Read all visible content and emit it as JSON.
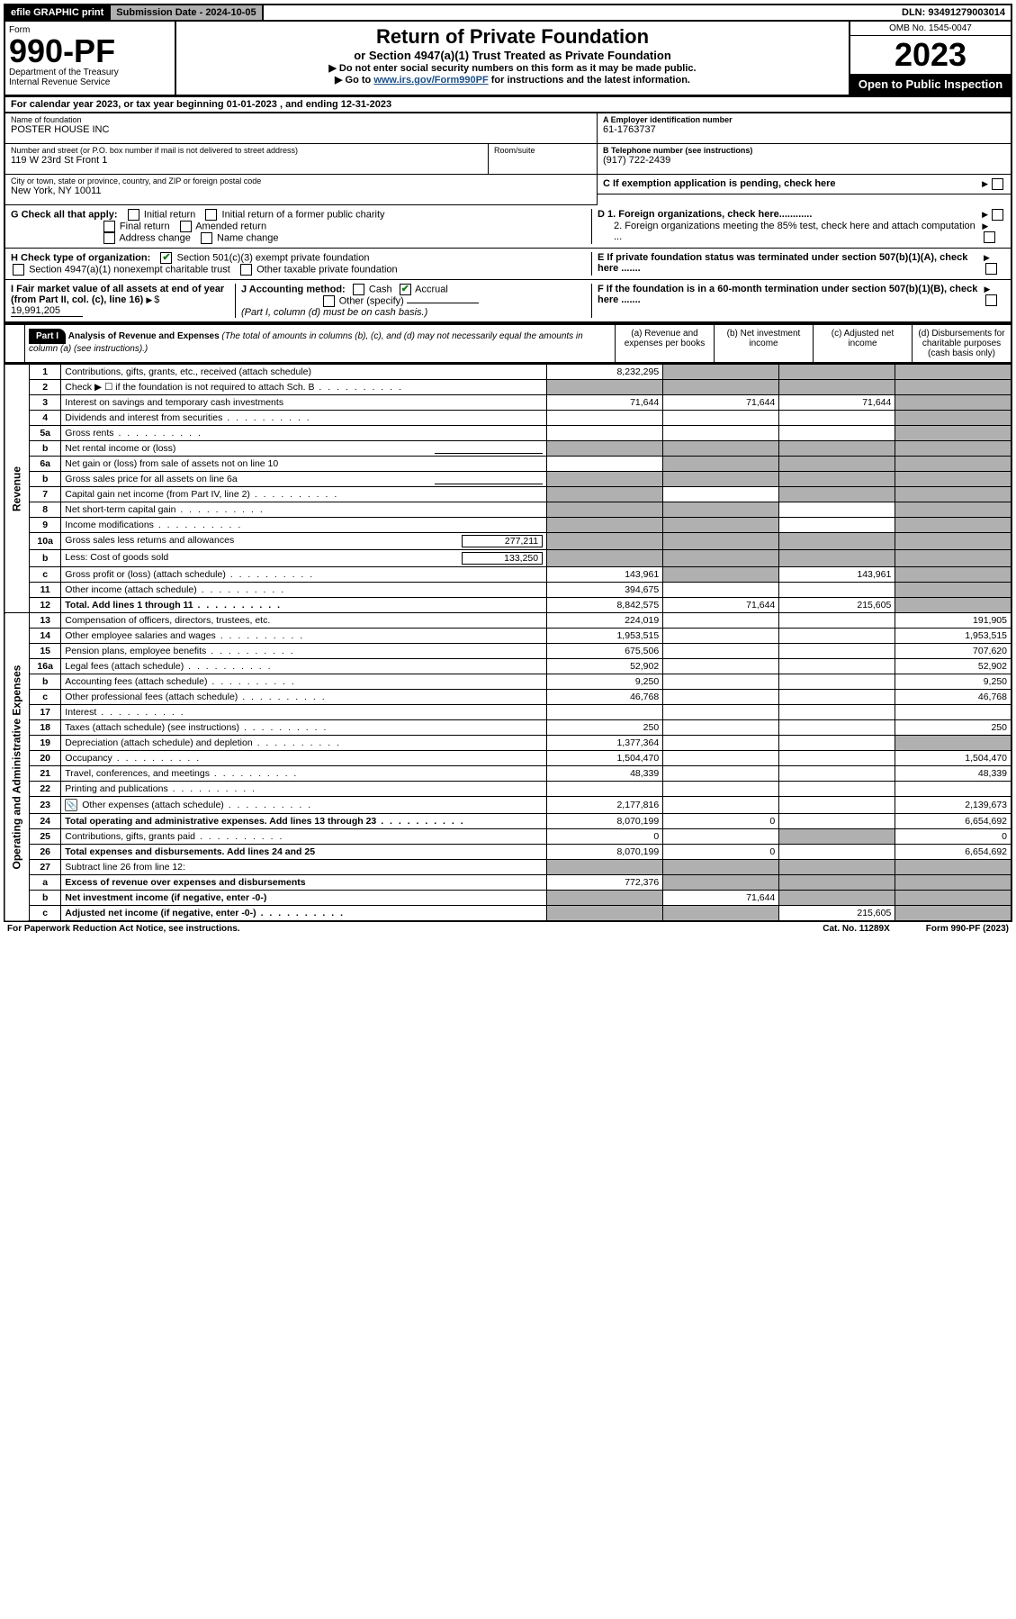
{
  "topbar": {
    "efile": "efile GRAPHIC print",
    "submission": "Submission Date - 2024-10-05",
    "dln": "DLN: 93491279003014"
  },
  "header": {
    "form_word": "Form",
    "form_number": "990-PF",
    "dept": "Department of the Treasury",
    "irs": "Internal Revenue Service",
    "title": "Return of Private Foundation",
    "subtitle": "or Section 4947(a)(1) Trust Treated as Private Foundation",
    "note1": "▶ Do not enter social security numbers on this form as it may be made public.",
    "note2_pre": "▶ Go to ",
    "note2_link": "www.irs.gov/Form990PF",
    "note2_post": " for instructions and the latest information.",
    "omb": "OMB No. 1545-0047",
    "year": "2023",
    "open": "Open to Public Inspection"
  },
  "calendar": "For calendar year 2023, or tax year beginning 01-01-2023                          , and ending 12-31-2023",
  "name": {
    "lbl": "Name of foundation",
    "val": "POSTER HOUSE INC"
  },
  "addr": {
    "lbl": "Number and street (or P.O. box number if mail is not delivered to street address)",
    "val": "119 W 23rd St Front 1",
    "room_lbl": "Room/suite"
  },
  "city": {
    "lbl": "City or town, state or province, country, and ZIP or foreign postal code",
    "val": "New York, NY  10011"
  },
  "ein": {
    "lbl": "A Employer identification number",
    "val": "61-1763737"
  },
  "tel": {
    "lbl": "B Telephone number (see instructions)",
    "val": "(917) 722-2439"
  },
  "c_exempt": "C If exemption application is pending, check here",
  "d1": "D 1. Foreign organizations, check here............",
  "d2": "2. Foreign organizations meeting the 85% test, check here and attach computation ...",
  "e": "E  If private foundation status was terminated under section 507(b)(1)(A), check here .......",
  "f": "F  If the foundation is in a 60-month termination under section 507(b)(1)(B), check here .......",
  "g": {
    "lbl": "G Check all that apply:",
    "opts": [
      "Initial return",
      "Initial return of a former public charity",
      "Final return",
      "Amended return",
      "Address change",
      "Name change"
    ]
  },
  "h": {
    "lbl": "H Check type of organization:",
    "o1": "Section 501(c)(3) exempt private foundation",
    "o2": "Section 4947(a)(1) nonexempt charitable trust",
    "o3": "Other taxable private foundation"
  },
  "i": {
    "lbl": "I Fair market value of all assets at end of year (from Part II, col. (c), line 16)",
    "val": "19,991,205"
  },
  "j": {
    "lbl": "J Accounting method:",
    "cash": "Cash",
    "accrual": "Accrual",
    "other": "Other (specify)",
    "note": "(Part I, column (d) must be on cash basis.)"
  },
  "part1": {
    "title": "Part I",
    "heading": "Analysis of Revenue and Expenses",
    "subhead": " (The total of amounts in columns (b), (c), and (d) may not necessarily equal the amounts in column (a) (see instructions).)",
    "cols": {
      "a": "(a)   Revenue and expenses per books",
      "b": "(b)   Net investment income",
      "c": "(c)   Adjusted net income",
      "d": "(d)   Disbursements for charitable purposes (cash basis only)"
    }
  },
  "side": {
    "rev": "Revenue",
    "exp": "Operating and Administrative Expenses"
  },
  "rows": [
    {
      "n": "1",
      "d": "Contributions, gifts, grants, etc., received (attach schedule)",
      "a": "8,232,295",
      "bs": true,
      "cs": true,
      "ds": true
    },
    {
      "n": "2",
      "d": "Check ▶ ☐ if the foundation is not required to attach Sch. B",
      "as": true,
      "bs": true,
      "cs": true,
      "ds": true,
      "dots": true
    },
    {
      "n": "3",
      "d": "Interest on savings and temporary cash investments",
      "a": "71,644",
      "b": "71,644",
      "c": "71,644",
      "ds": true
    },
    {
      "n": "4",
      "d": "Dividends and interest from securities",
      "dots": true,
      "ds": true
    },
    {
      "n": "5a",
      "d": "Gross rents",
      "dots": true,
      "ds": true
    },
    {
      "n": "b",
      "d": "Net rental income or (loss)",
      "inline": true,
      "bs": true,
      "cs": true,
      "ds": true,
      "as": true
    },
    {
      "n": "6a",
      "d": "Net gain or (loss) from sale of assets not on line 10",
      "bs": true,
      "cs": true,
      "ds": true
    },
    {
      "n": "b",
      "d": "Gross sales price for all assets on line 6a",
      "inline": true,
      "as": true,
      "bs": true,
      "cs": true,
      "ds": true
    },
    {
      "n": "7",
      "d": "Capital gain net income (from Part IV, line 2)",
      "dots": true,
      "as": true,
      "cs": true,
      "ds": true
    },
    {
      "n": "8",
      "d": "Net short-term capital gain",
      "dots": true,
      "as": true,
      "bs": true,
      "ds": true
    },
    {
      "n": "9",
      "d": "Income modifications",
      "dots": true,
      "as": true,
      "bs": true,
      "ds": true
    },
    {
      "n": "10a",
      "d": "Gross sales less returns and allowances",
      "inline": true,
      "iv": "277,211",
      "as": true,
      "bs": true,
      "cs": true,
      "ds": true
    },
    {
      "n": "b",
      "d": "Less: Cost of goods sold",
      "inline": true,
      "iv": "133,250",
      "dots": true,
      "as": true,
      "bs": true,
      "cs": true,
      "ds": true
    },
    {
      "n": "c",
      "d": "Gross profit or (loss) (attach schedule)",
      "dots": true,
      "a": "143,961",
      "bs": true,
      "c": "143,961",
      "ds": true
    },
    {
      "n": "11",
      "d": "Other income (attach schedule)",
      "dots": true,
      "a": "394,675",
      "ds": true
    },
    {
      "n": "12",
      "d": "Total. Add lines 1 through 11",
      "bold": true,
      "dots": true,
      "a": "8,842,575",
      "b": "71,644",
      "c": "215,605",
      "ds": true
    },
    {
      "n": "13",
      "d": "Compensation of officers, directors, trustees, etc.",
      "a": "224,019",
      "d2": "191,905"
    },
    {
      "n": "14",
      "d": "Other employee salaries and wages",
      "dots": true,
      "a": "1,953,515",
      "d2": "1,953,515"
    },
    {
      "n": "15",
      "d": "Pension plans, employee benefits",
      "dots": true,
      "a": "675,506",
      "d2": "707,620"
    },
    {
      "n": "16a",
      "d": "Legal fees (attach schedule)",
      "dots": true,
      "a": "52,902",
      "d2": "52,902"
    },
    {
      "n": "b",
      "d": "Accounting fees (attach schedule)",
      "dots": true,
      "a": "9,250",
      "d2": "9,250"
    },
    {
      "n": "c",
      "d": "Other professional fees (attach schedule)",
      "dots": true,
      "a": "46,768",
      "d2": "46,768"
    },
    {
      "n": "17",
      "d": "Interest",
      "dots": true
    },
    {
      "n": "18",
      "d": "Taxes (attach schedule) (see instructions)",
      "dots": true,
      "a": "250",
      "d2": "250"
    },
    {
      "n": "19",
      "d": "Depreciation (attach schedule) and depletion",
      "dots": true,
      "a": "1,377,364",
      "ds": true
    },
    {
      "n": "20",
      "d": "Occupancy",
      "dots": true,
      "a": "1,504,470",
      "d2": "1,504,470"
    },
    {
      "n": "21",
      "d": "Travel, conferences, and meetings",
      "dots": true,
      "a": "48,339",
      "d2": "48,339"
    },
    {
      "n": "22",
      "d": "Printing and publications",
      "dots": true
    },
    {
      "n": "23",
      "d": "Other expenses (attach schedule)",
      "dots": true,
      "icon": true,
      "a": "2,177,816",
      "d2": "2,139,673"
    },
    {
      "n": "24",
      "d": "Total operating and administrative expenses. Add lines 13 through 23",
      "bold": true,
      "dots": true,
      "a": "8,070,199",
      "b": "0",
      "d2": "6,654,692"
    },
    {
      "n": "25",
      "d": "Contributions, gifts, grants paid",
      "dots": true,
      "a": "0",
      "cs": true,
      "d2": "0"
    },
    {
      "n": "26",
      "d": "Total expenses and disbursements. Add lines 24 and 25",
      "bold": true,
      "a": "8,070,199",
      "b": "0",
      "d2": "6,654,692"
    },
    {
      "n": "27",
      "d": "Subtract line 26 from line 12:",
      "as": true,
      "bs": true,
      "cs": true,
      "ds": true
    },
    {
      "n": "a",
      "d": "Excess of revenue over expenses and disbursements",
      "bold": true,
      "a": "772,376",
      "bs": true,
      "cs": true,
      "ds": true
    },
    {
      "n": "b",
      "d": "Net investment income (if negative, enter -0-)",
      "bold": true,
      "as": true,
      "b": "71,644",
      "cs": true,
      "ds": true
    },
    {
      "n": "c",
      "d": "Adjusted net income (if negative, enter -0-)",
      "bold": true,
      "dots": true,
      "as": true,
      "bs": true,
      "c": "215,605",
      "ds": true
    }
  ],
  "footer": {
    "left": "For Paperwork Reduction Act Notice, see instructions.",
    "mid": "Cat. No. 11289X",
    "right": "Form 990-PF (2023)"
  }
}
